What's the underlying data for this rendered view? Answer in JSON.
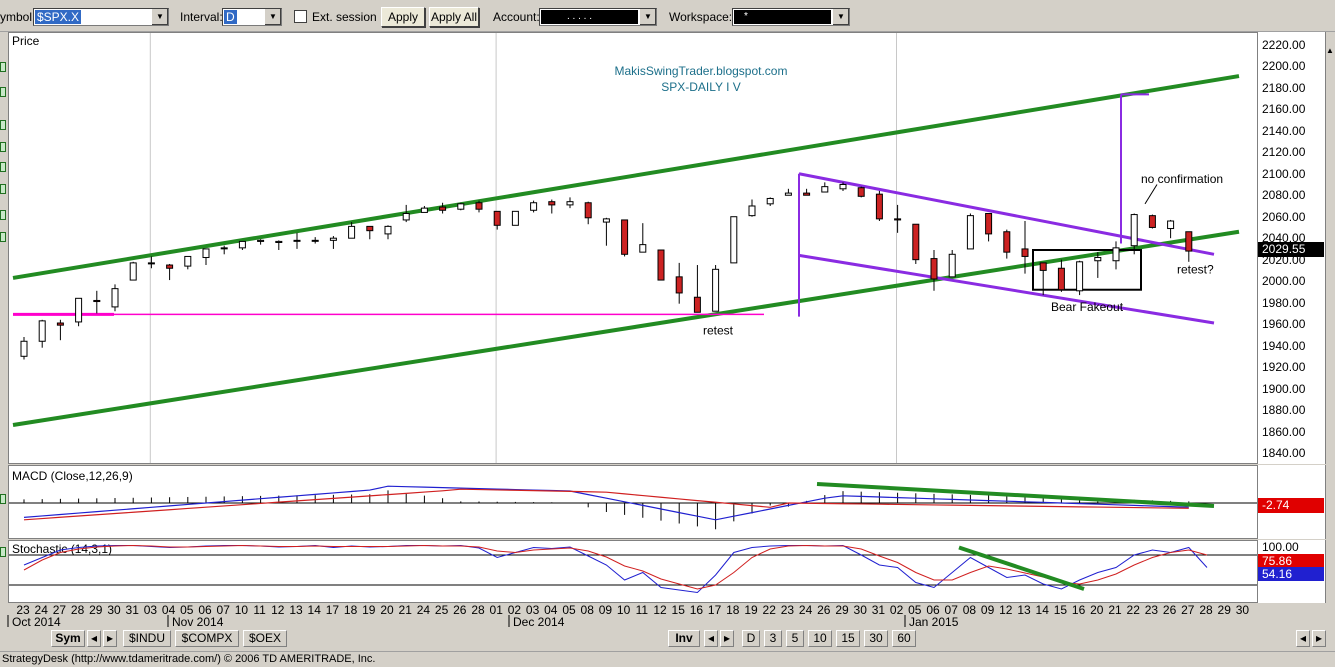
{
  "toolbar": {
    "symbol_label": "ymbol:",
    "symbol_value": "$SPX.X",
    "interval_label": "Interval:",
    "interval_value": "D",
    "ext_session_label": "Ext. session",
    "apply_label": "Apply",
    "apply_all_label": "Apply All",
    "account_label": "Account:",
    "account_value": ". . . . .",
    "workspace_label": "Workspace:",
    "workspace_value": "*"
  },
  "chart": {
    "price_title": "Price",
    "watermark_line1": "MakisSwingTrader.blogspot.com",
    "watermark_line2": "SPX-DAILY  I V",
    "last_price": "2029.55",
    "annotations": {
      "retest1": "retest",
      "bear_fakeout": "Bear Fakeout",
      "no_confirmation": "no confirmation",
      "retest2": "retest?"
    },
    "macd_title": "MACD (Close,12,26,9)",
    "macd_value": "-2.74",
    "stoch_title": "Stochastic (14,3,1)",
    "stoch_values": [
      "100.00",
      "75.86",
      "54.16"
    ],
    "price_ticks": [
      "2220.00",
      "2200.00",
      "2180.00",
      "2160.00",
      "2140.00",
      "2120.00",
      "2100.00",
      "2080.00",
      "2060.00",
      "2040.00",
      "2020.00",
      "2000.00",
      "1980.00",
      "1960.00",
      "1940.00",
      "1920.00",
      "1900.00",
      "1880.00",
      "1860.00",
      "1840.00"
    ],
    "date_labels": [
      "23",
      "24",
      "27",
      "28",
      "29",
      "30",
      "31",
      "03",
      "04",
      "05",
      "06",
      "07",
      "10",
      "11",
      "12",
      "13",
      "14",
      "17",
      "18",
      "19",
      "20",
      "21",
      "24",
      "25",
      "26",
      "28",
      "01",
      "02",
      "03",
      "04",
      "05",
      "08",
      "09",
      "10",
      "11",
      "12",
      "15",
      "16",
      "17",
      "18",
      "19",
      "22",
      "23",
      "24",
      "26",
      "29",
      "30",
      "31",
      "02",
      "05",
      "06",
      "07",
      "08",
      "09",
      "12",
      "13",
      "14",
      "15",
      "16",
      "20",
      "21",
      "22",
      "23",
      "26",
      "27",
      "28",
      "29",
      "30"
    ],
    "month_labels": [
      "Oct 2014",
      "Nov 2014",
      "Dec 2014",
      "Jan 2015"
    ],
    "colors": {
      "up": "#ffffff",
      "down": "#cc2222",
      "trendline": "#228b22",
      "pattern": "#8a2be2",
      "support": "#ff00cc"
    }
  },
  "chart_data": {
    "type": "candlestick",
    "candles": [
      {
        "d": "2014-10-23",
        "o": 1931,
        "h": 1949,
        "l": 1928,
        "c": 1945
      },
      {
        "d": "2014-10-24",
        "o": 1945,
        "h": 1965,
        "l": 1939,
        "c": 1964
      },
      {
        "d": "2014-10-27",
        "o": 1962,
        "h": 1965,
        "l": 1946,
        "c": 1960
      },
      {
        "d": "2014-10-28",
        "o": 1963,
        "h": 1985,
        "l": 1959,
        "c": 1985
      },
      {
        "d": "2014-10-29",
        "o": 1983,
        "h": 1992,
        "l": 1971,
        "c": 1982
      },
      {
        "d": "2014-10-30",
        "o": 1977,
        "h": 1998,
        "l": 1973,
        "c": 1994
      },
      {
        "d": "2014-10-31",
        "o": 2002,
        "h": 2019,
        "l": 2002,
        "c": 2018
      },
      {
        "d": "2014-11-03",
        "o": 2018,
        "h": 2024,
        "l": 2013,
        "c": 2018
      },
      {
        "d": "2014-11-04",
        "o": 2016,
        "h": 2017,
        "l": 2002,
        "c": 2013
      },
      {
        "d": "2014-11-05",
        "o": 2015,
        "h": 2024,
        "l": 2012,
        "c": 2024
      },
      {
        "d": "2014-11-06",
        "o": 2023,
        "h": 2031,
        "l": 2016,
        "c": 2031
      },
      {
        "d": "2014-11-07",
        "o": 2032,
        "h": 2034,
        "l": 2026,
        "c": 2032
      },
      {
        "d": "2014-11-10",
        "o": 2032,
        "h": 2038,
        "l": 2030,
        "c": 2038
      },
      {
        "d": "2014-11-11",
        "o": 2038,
        "h": 2040,
        "l": 2035,
        "c": 2039
      },
      {
        "d": "2014-11-12",
        "o": 2037,
        "h": 2039,
        "l": 2030,
        "c": 2038
      },
      {
        "d": "2014-11-13",
        "o": 2039,
        "h": 2046,
        "l": 2031,
        "c": 2039
      },
      {
        "d": "2014-11-14",
        "o": 2039,
        "h": 2042,
        "l": 2036,
        "c": 2039
      },
      {
        "d": "2014-11-17",
        "o": 2039,
        "h": 2043,
        "l": 2031,
        "c": 2041
      },
      {
        "d": "2014-11-18",
        "o": 2041,
        "h": 2056,
        "l": 2041,
        "c": 2052
      },
      {
        "d": "2014-11-19",
        "o": 2052,
        "h": 2052,
        "l": 2040,
        "c": 2048
      },
      {
        "d": "2014-11-20",
        "o": 2045,
        "h": 2053,
        "l": 2040,
        "c": 2052
      },
      {
        "d": "2014-11-21",
        "o": 2058,
        "h": 2072,
        "l": 2056,
        "c": 2064
      },
      {
        "d": "2014-11-24",
        "o": 2065,
        "h": 2071,
        "l": 2065,
        "c": 2069
      },
      {
        "d": "2014-11-25",
        "o": 2070,
        "h": 2074,
        "l": 2064,
        "c": 2067
      },
      {
        "d": "2014-11-26",
        "o": 2068,
        "h": 2074,
        "l": 2067,
        "c": 2073
      },
      {
        "d": "2014-11-28",
        "o": 2074,
        "h": 2076,
        "l": 2065,
        "c": 2068
      },
      {
        "d": "2014-12-01",
        "o": 2066,
        "h": 2066,
        "l": 2049,
        "c": 2053
      },
      {
        "d": "2014-12-02",
        "o": 2053,
        "h": 2066,
        "l": 2053,
        "c": 2066
      },
      {
        "d": "2014-12-03",
        "o": 2067,
        "h": 2076,
        "l": 2065,
        "c": 2074
      },
      {
        "d": "2014-12-04",
        "o": 2075,
        "h": 2077,
        "l": 2064,
        "c": 2072
      },
      {
        "d": "2014-12-05",
        "o": 2072,
        "h": 2079,
        "l": 2069,
        "c": 2075
      },
      {
        "d": "2014-12-08",
        "o": 2074,
        "h": 2075,
        "l": 2054,
        "c": 2060
      },
      {
        "d": "2014-12-09",
        "o": 2056,
        "h": 2060,
        "l": 2034,
        "c": 2059
      },
      {
        "d": "2014-12-10",
        "o": 2058,
        "h": 2058,
        "l": 2024,
        "c": 2026
      },
      {
        "d": "2014-12-11",
        "o": 2028,
        "h": 2055,
        "l": 2028,
        "c": 2035
      },
      {
        "d": "2014-12-12",
        "o": 2030,
        "h": 2030,
        "l": 2002,
        "c": 2002
      },
      {
        "d": "2014-12-15",
        "o": 2005,
        "h": 2018,
        "l": 1980,
        "c": 1990
      },
      {
        "d": "2014-12-16",
        "o": 1986,
        "h": 2016,
        "l": 1972,
        "c": 1972
      },
      {
        "d": "2014-12-17",
        "o": 1973,
        "h": 2016,
        "l": 1973,
        "c": 2012
      },
      {
        "d": "2014-12-18",
        "o": 2018,
        "h": 2061,
        "l": 2018,
        "c": 2061
      },
      {
        "d": "2014-12-19",
        "o": 2062,
        "h": 2077,
        "l": 2061,
        "c": 2071
      },
      {
        "d": "2014-12-22",
        "o": 2073,
        "h": 2079,
        "l": 2071,
        "c": 2078
      },
      {
        "d": "2014-12-23",
        "o": 2081,
        "h": 2087,
        "l": 2081,
        "c": 2083
      },
      {
        "d": "2014-12-24",
        "o": 2083,
        "h": 2087,
        "l": 2081,
        "c": 2081
      },
      {
        "d": "2014-12-26",
        "o": 2084,
        "h": 2093,
        "l": 2084,
        "c": 2089
      },
      {
        "d": "2014-12-29",
        "o": 2087,
        "h": 2093,
        "l": 2085,
        "c": 2091
      },
      {
        "d": "2014-12-30",
        "o": 2088,
        "h": 2089,
        "l": 2079,
        "c": 2080
      },
      {
        "d": "2014-12-31",
        "o": 2082,
        "h": 2085,
        "l": 2057,
        "c": 2059
      },
      {
        "d": "2015-01-02",
        "o": 2059,
        "h": 2072,
        "l": 2046,
        "c": 2058
      },
      {
        "d": "2015-01-05",
        "o": 2054,
        "h": 2054,
        "l": 2017,
        "c": 2021
      },
      {
        "d": "2015-01-06",
        "o": 2022,
        "h": 2030,
        "l": 1992,
        "c": 2003
      },
      {
        "d": "2015-01-07",
        "o": 2005,
        "h": 2030,
        "l": 2005,
        "c": 2026
      },
      {
        "d": "2015-01-08",
        "o": 2031,
        "h": 2064,
        "l": 2031,
        "c": 2062
      },
      {
        "d": "2015-01-09",
        "o": 2064,
        "h": 2064,
        "l": 2038,
        "c": 2045
      },
      {
        "d": "2015-01-12",
        "o": 2047,
        "h": 2049,
        "l": 2022,
        "c": 2028
      },
      {
        "d": "2015-01-13",
        "o": 2031,
        "h": 2057,
        "l": 2008,
        "c": 2024
      },
      {
        "d": "2015-01-14",
        "o": 2018,
        "h": 2018,
        "l": 1988,
        "c": 2011
      },
      {
        "d": "2015-01-15",
        "o": 2013,
        "h": 2021,
        "l": 1991,
        "c": 1993
      },
      {
        "d": "2015-01-16",
        "o": 1992,
        "h": 2020,
        "l": 1988,
        "c": 2019
      },
      {
        "d": "2015-01-20",
        "o": 2020,
        "h": 2028,
        "l": 2004,
        "c": 2023
      },
      {
        "d": "2015-01-21",
        "o": 2020,
        "h": 2038,
        "l": 2012,
        "c": 2032
      },
      {
        "d": "2015-01-22",
        "o": 2034,
        "h": 2064,
        "l": 2026,
        "c": 2063
      },
      {
        "d": "2015-01-23",
        "o": 2062,
        "h": 2063,
        "l": 2050,
        "c": 2051
      },
      {
        "d": "2015-01-26",
        "o": 2050,
        "h": 2058,
        "l": 2041,
        "c": 2057
      },
      {
        "d": "2015-01-27",
        "o": 2047,
        "h": 2047,
        "l": 2019,
        "c": 2029
      }
    ],
    "yrange": [
      1830,
      2230
    ],
    "macd_yrange": [
      -20,
      30
    ],
    "stoch_yrange": [
      -5,
      105
    ]
  }
}
